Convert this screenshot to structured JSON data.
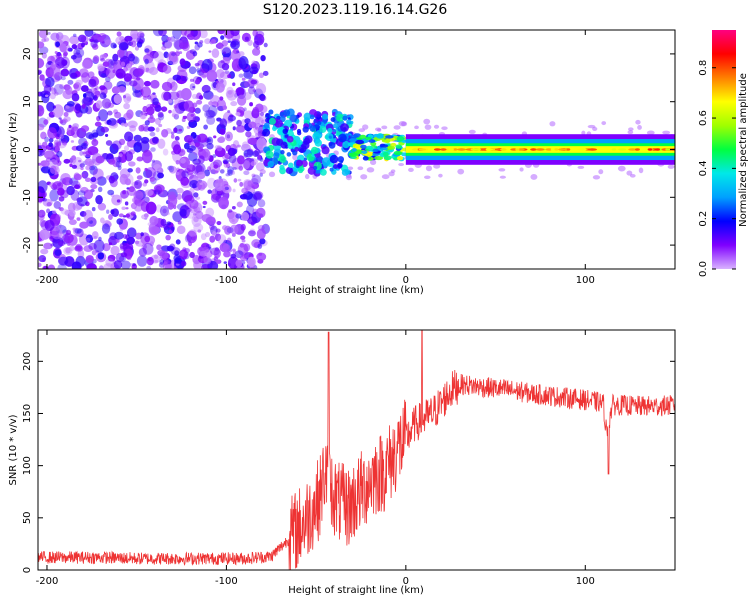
{
  "title": "S120.2023.119.16.14.G26",
  "colors": {
    "snr_line": "#ee3333",
    "axis": "#000000"
  },
  "colormap_stops": [
    "#d9b3ff",
    "#7f00ff",
    "#0000ff",
    "#00a0ff",
    "#00e8e8",
    "#00ff40",
    "#a0ff00",
    "#ffff00",
    "#ff8000",
    "#ff0000",
    "#ff0080"
  ],
  "chart_data": [
    {
      "type": "heatmap",
      "xlabel": "Height of straight line (km)",
      "ylabel": "Frequency (Hz)",
      "xlim": [
        -205,
        150
      ],
      "ylim": [
        -25,
        25
      ],
      "x_ticks": [
        -200,
        -100,
        0,
        100
      ],
      "x_tick_labels": [
        "-200",
        "-100",
        "0",
        "100"
      ],
      "y_ticks": [
        -20,
        -10,
        0,
        10,
        20
      ],
      "y_tick_labels": [
        "-20",
        "-10",
        "0",
        "10",
        "20"
      ],
      "colorbar": {
        "label": "Normalized spectral amplitude",
        "range": [
          0,
          0.95
        ],
        "ticks": [
          0.0,
          0.2,
          0.4,
          0.6,
          0.8
        ],
        "tick_labels": [
          "0.0",
          "0.2",
          "0.4",
          "0.6",
          "0.8"
        ]
      },
      "description_regions": [
        {
          "x_range": [
            -205,
            -78
          ],
          "freq_range": [
            -25,
            25
          ],
          "amplitude": 0.15
        },
        {
          "x_range": [
            -78,
            -30
          ],
          "freq_range": [
            -5,
            8
          ],
          "amplitude": 0.35
        },
        {
          "x_range": [
            -30,
            0
          ],
          "freq_range": [
            -2,
            3
          ],
          "amplitude": 0.6
        },
        {
          "x_range": [
            0,
            150
          ],
          "freq_range": [
            -1,
            1
          ],
          "amplitude": 0.85
        }
      ]
    },
    {
      "type": "line",
      "xlabel": "Height of straight line (km)",
      "ylabel": "SNR (10 * v/v)",
      "xlim": [
        -205,
        150
      ],
      "ylim": [
        0,
        230
      ],
      "x_ticks": [
        -200,
        -100,
        0,
        100
      ],
      "x_tick_labels": [
        "-200",
        "-100",
        "0",
        "100"
      ],
      "y_ticks": [
        0,
        50,
        100,
        150,
        200
      ],
      "y_tick_labels": [
        "0",
        "50",
        "100",
        "150",
        "200"
      ],
      "series": [
        {
          "x": [
            -205,
            -190,
            -170,
            -150,
            -130,
            -110,
            -90,
            -75,
            -65,
            -55,
            -48,
            -45,
            -42,
            -38,
            -32,
            -25,
            -18,
            -12,
            -8,
            -4,
            0,
            5,
            10,
            15,
            20,
            25,
            30,
            40,
            50,
            60,
            70,
            80,
            90,
            100,
            110,
            112,
            115,
            120,
            130,
            140,
            150
          ],
          "values": [
            12,
            12,
            12,
            11,
            11,
            11,
            11,
            13,
            30,
            50,
            70,
            95,
            80,
            65,
            60,
            75,
            90,
            95,
            105,
            118,
            125,
            140,
            145,
            150,
            160,
            172,
            178,
            176,
            174,
            172,
            169,
            167,
            165,
            163,
            160,
            130,
            158,
            158,
            157,
            157,
            158
          ]
        }
      ]
    }
  ]
}
